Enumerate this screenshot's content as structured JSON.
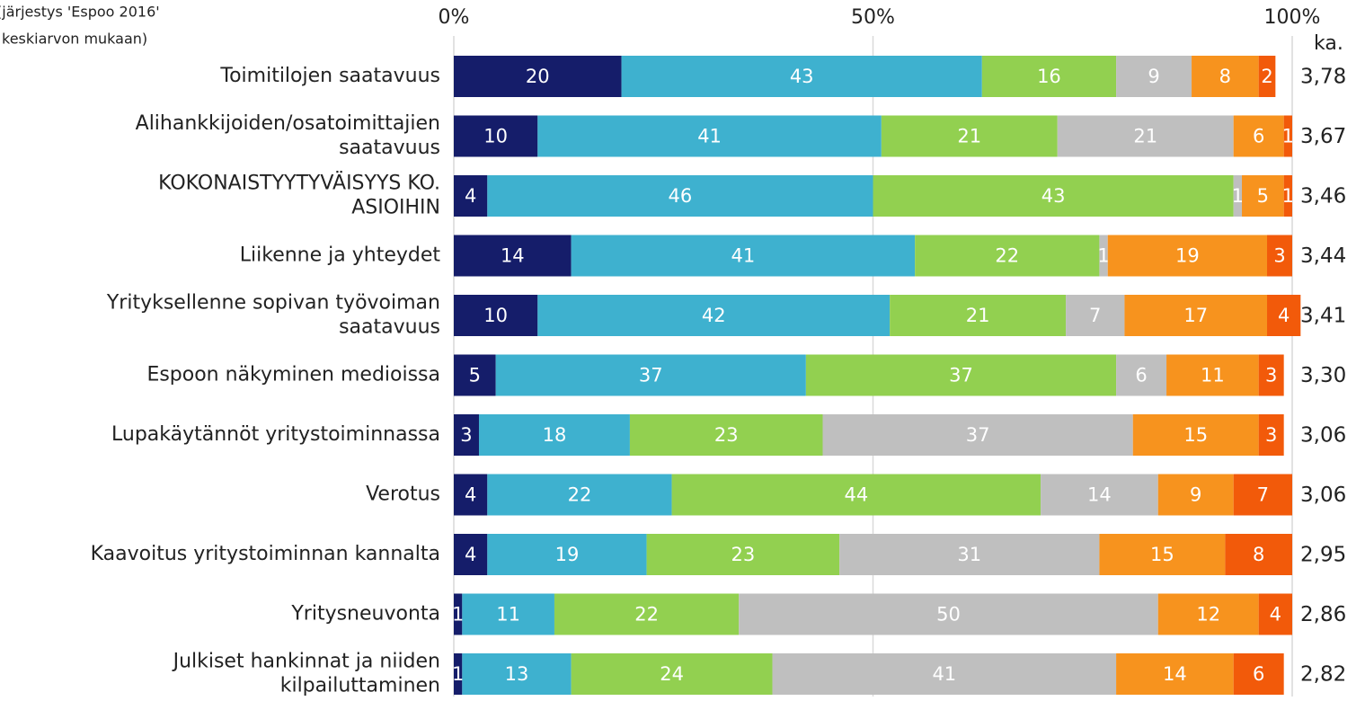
{
  "chart_data": {
    "type": "stacked-bar-horizontal",
    "note": [
      "(järjestys 'Espoo 2016'",
      "keskiarvon mukaan)"
    ],
    "categories": [
      [
        "Toimitilojen saatavuus"
      ],
      [
        "Alihankkijoiden/osatoimittajien",
        "saatavuus"
      ],
      [
        "KOKONAISTYYTYVÄISYYS KO.",
        "ASIOIHIN"
      ],
      [
        "Liikenne ja yhteydet"
      ],
      [
        "Yrityksellenne sopivan työvoiman",
        "saatavuus"
      ],
      [
        "Espoon näkyminen medioissa"
      ],
      [
        "Lupakäytännöt yritystoiminnassa"
      ],
      [
        "Verotus"
      ],
      [
        "Kaavoitus yritystoiminnan kannalta"
      ],
      [
        "Yritysneuvonta"
      ],
      [
        "Julkiset hankinnat ja niiden",
        "kilpailuttaminen"
      ]
    ],
    "series": [
      {
        "color": "#151d6a",
        "values": [
          20,
          10,
          4,
          14,
          10,
          5,
          3,
          4,
          4,
          1,
          1
        ]
      },
      {
        "color": "#3eb1cf",
        "values": [
          43,
          41,
          46,
          41,
          42,
          37,
          18,
          22,
          19,
          11,
          13
        ]
      },
      {
        "color": "#92d050",
        "values": [
          16,
          21,
          43,
          22,
          21,
          37,
          23,
          44,
          23,
          22,
          24
        ]
      },
      {
        "color": "#bfbfbf",
        "values": [
          9,
          21,
          1,
          1,
          7,
          6,
          37,
          14,
          31,
          50,
          41
        ]
      },
      {
        "color": "#f7931e",
        "values": [
          8,
          6,
          5,
          19,
          17,
          11,
          15,
          9,
          15,
          12,
          14
        ]
      },
      {
        "color": "#f25a0a",
        "values": [
          2,
          1,
          1,
          3,
          4,
          3,
          3,
          7,
          8,
          4,
          6
        ]
      }
    ],
    "averages": {
      "header": "ka.",
      "values": [
        3.78,
        3.67,
        3.46,
        3.44,
        3.41,
        3.3,
        3.06,
        3.06,
        2.95,
        2.86,
        2.82
      ],
      "value_labels": [
        "3,78",
        "3,67",
        "3,46",
        "3,44",
        "3,41",
        "3,30",
        "3,06",
        "3,06",
        "2,95",
        "2,86",
        "2,82"
      ]
    },
    "xlim": [
      0,
      100
    ],
    "xticks": [
      {
        "value": 0,
        "label": "0%"
      },
      {
        "value": 50,
        "label": "50%"
      },
      {
        "value": 100,
        "label": "100%"
      }
    ],
    "grid": true
  }
}
